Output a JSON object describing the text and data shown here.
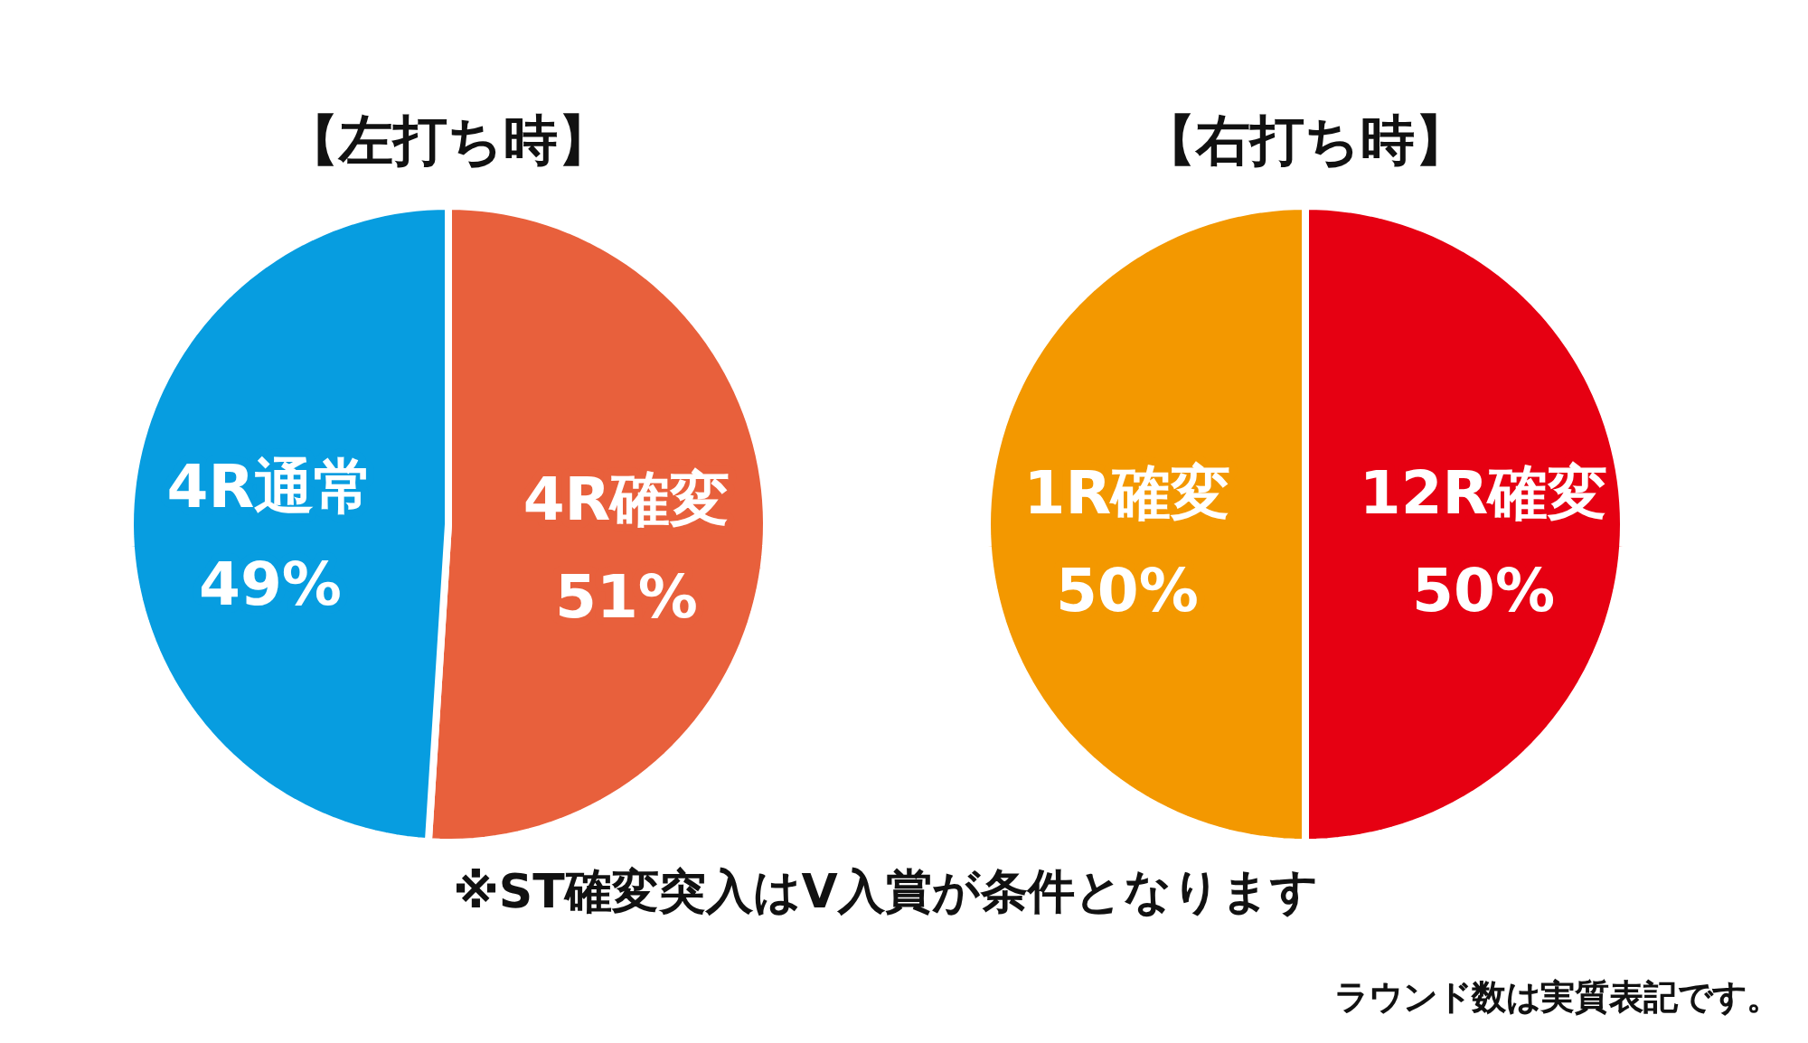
{
  "chart_data": [
    {
      "type": "pie",
      "title": "【左打ち時】",
      "categories": [
        "4R確変",
        "4R通常"
      ],
      "values": [
        51,
        49
      ],
      "colors": [
        "#e8603c",
        "#079de0"
      ],
      "data_labels": true,
      "value_labels": [
        "51%",
        "49%"
      ],
      "annotations": [
        "※ST確変突入はV入賞が条件となります"
      ]
    },
    {
      "type": "pie",
      "title": "【右打ち時】",
      "categories": [
        "12R確変",
        "1R確変"
      ],
      "values": [
        50,
        50
      ],
      "colors": [
        "#e60012",
        "#f39800"
      ],
      "data_labels": true,
      "value_labels": [
        "50%",
        "50%"
      ],
      "annotations": [
        "ラウンド数は実質表記です。"
      ]
    }
  ]
}
